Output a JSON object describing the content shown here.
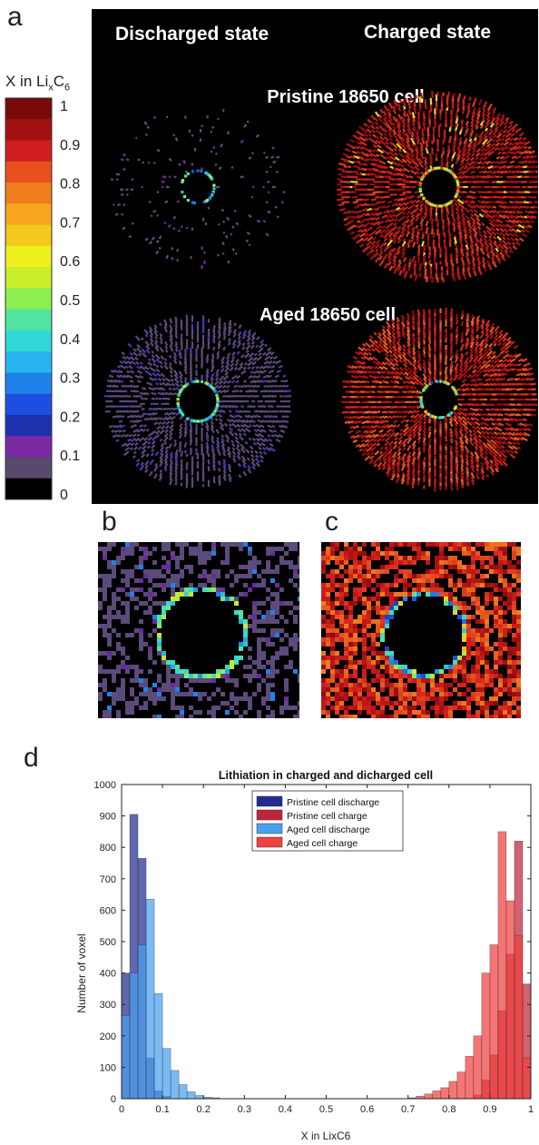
{
  "panel_labels": {
    "a": "a",
    "b": "b",
    "c": "c",
    "d": "d"
  },
  "panel_a": {
    "column_titles": [
      "Discharged state",
      "Charged state"
    ],
    "row_titles": [
      "Pristine 18650 cell",
      "Aged 18650 cell"
    ]
  },
  "colorbar": {
    "title_prefix": "X in Li",
    "title_sub_x": "x",
    "title_mid": "C",
    "title_sub_6": "6",
    "tick_labels": [
      "1",
      "0.9",
      "0.8",
      "0.7",
      "0.6",
      "0.5",
      "0.4",
      "0.3",
      "0.2",
      "0.1",
      "0"
    ],
    "colors_top_to_bottom": [
      "#7a0a0a",
      "#a21212",
      "#d21e1e",
      "#e8501e",
      "#f07e1e",
      "#f7a51e",
      "#f4c81c",
      "#eef020",
      "#c8ee2a",
      "#8cee50",
      "#50e4a0",
      "#30d8d8",
      "#28b4ee",
      "#1e82e8",
      "#1e4ee0",
      "#1e32b0",
      "#7a2aa0",
      "#584a6c",
      "#000000"
    ]
  },
  "chart_data": {
    "type": "bar",
    "title": "Lithiation in charged and dicharged cell",
    "xlabel": "X in LixC6",
    "ylabel": "Number of voxel",
    "xlim": [
      0,
      1
    ],
    "ylim": [
      0,
      1000
    ],
    "xticks": [
      "0",
      "0.1",
      "0.2",
      "0.3",
      "0.4",
      "0.5",
      "0.6",
      "0.7",
      "0.8",
      "0.9",
      "1"
    ],
    "yticks": [
      "0",
      "100",
      "200",
      "300",
      "400",
      "500",
      "600",
      "700",
      "800",
      "900",
      "1000"
    ],
    "legend_position": "top-center",
    "bin_width": 0.02,
    "series": [
      {
        "name": "Pristine cell discharge",
        "color": "#232c8e",
        "bins": [
          [
            0.0,
            400
          ],
          [
            0.02,
            905
          ],
          [
            0.04,
            765
          ],
          [
            0.06,
            130
          ],
          [
            0.08,
            25
          ],
          [
            0.1,
            8
          ]
        ]
      },
      {
        "name": "Pristine cell charge",
        "color": "#c0243a",
        "bins": [
          [
            0.86,
            12
          ],
          [
            0.88,
            60
          ],
          [
            0.9,
            140
          ],
          [
            0.92,
            280
          ],
          [
            0.94,
            460
          ],
          [
            0.96,
            820
          ],
          [
            0.98,
            365
          ]
        ]
      },
      {
        "name": "Aged cell discharge",
        "color": "#4aa0f0",
        "bins": [
          [
            0.0,
            265
          ],
          [
            0.02,
            400
          ],
          [
            0.04,
            490
          ],
          [
            0.06,
            635
          ],
          [
            0.08,
            335
          ],
          [
            0.1,
            160
          ],
          [
            0.12,
            90
          ],
          [
            0.14,
            45
          ],
          [
            0.16,
            22
          ],
          [
            0.18,
            10
          ],
          [
            0.2,
            5
          ],
          [
            0.22,
            3
          ]
        ]
      },
      {
        "name": "Aged cell charge",
        "color": "#f04040",
        "bins": [
          [
            0.7,
            3
          ],
          [
            0.72,
            8
          ],
          [
            0.74,
            15
          ],
          [
            0.76,
            25
          ],
          [
            0.78,
            35
          ],
          [
            0.8,
            55
          ],
          [
            0.82,
            85
          ],
          [
            0.84,
            135
          ],
          [
            0.86,
            200
          ],
          [
            0.88,
            400
          ],
          [
            0.9,
            490
          ],
          [
            0.92,
            850
          ],
          [
            0.94,
            630
          ],
          [
            0.96,
            520
          ],
          [
            0.98,
            130
          ]
        ]
      }
    ]
  }
}
